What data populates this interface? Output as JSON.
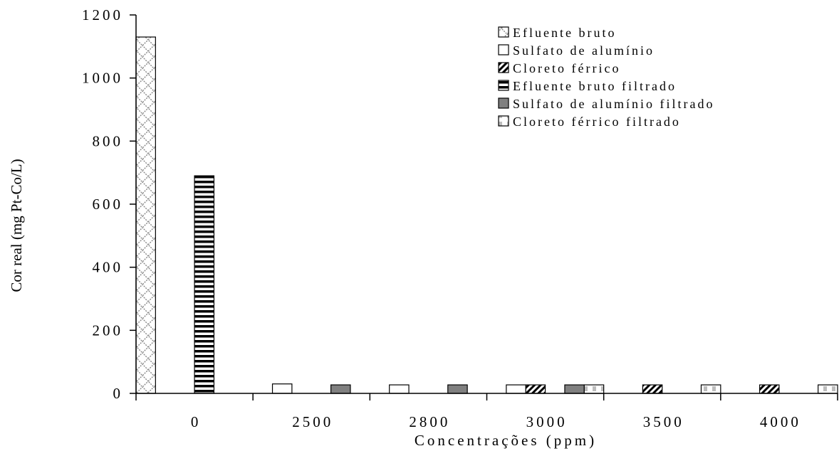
{
  "chart_data": {
    "type": "bar",
    "xlabel": "Concentrações (ppm)",
    "ylabel": "Cor real (mg Pt-Co/L)",
    "ylim": [
      0,
      1200
    ],
    "yticks": [
      0,
      200,
      400,
      600,
      800,
      1000,
      1200
    ],
    "categories": [
      "0",
      "2500",
      "2800",
      "3000",
      "3500",
      "4000"
    ],
    "legend_position": "top-right",
    "series": [
      {
        "name": "Efluente bruto",
        "pattern": "crosshatch",
        "values": [
          1130,
          null,
          null,
          null,
          null,
          null
        ]
      },
      {
        "name": "Sulfato de alumínio",
        "pattern": "white",
        "values": [
          null,
          30,
          27,
          27,
          null,
          null
        ]
      },
      {
        "name": "Cloreto férrico",
        "pattern": "diagonal",
        "values": [
          null,
          null,
          null,
          27,
          27,
          27
        ]
      },
      {
        "name": "Efluente bruto filtrado",
        "pattern": "horizontal",
        "values": [
          690,
          null,
          null,
          null,
          null,
          null
        ]
      },
      {
        "name": "Sulfato de alumínio filtrado",
        "pattern": "gray",
        "values": [
          null,
          27,
          27,
          27,
          null,
          null
        ]
      },
      {
        "name": "Cloreto férrico filtrado",
        "pattern": "dots",
        "values": [
          null,
          null,
          null,
          27,
          27,
          27
        ]
      }
    ]
  }
}
